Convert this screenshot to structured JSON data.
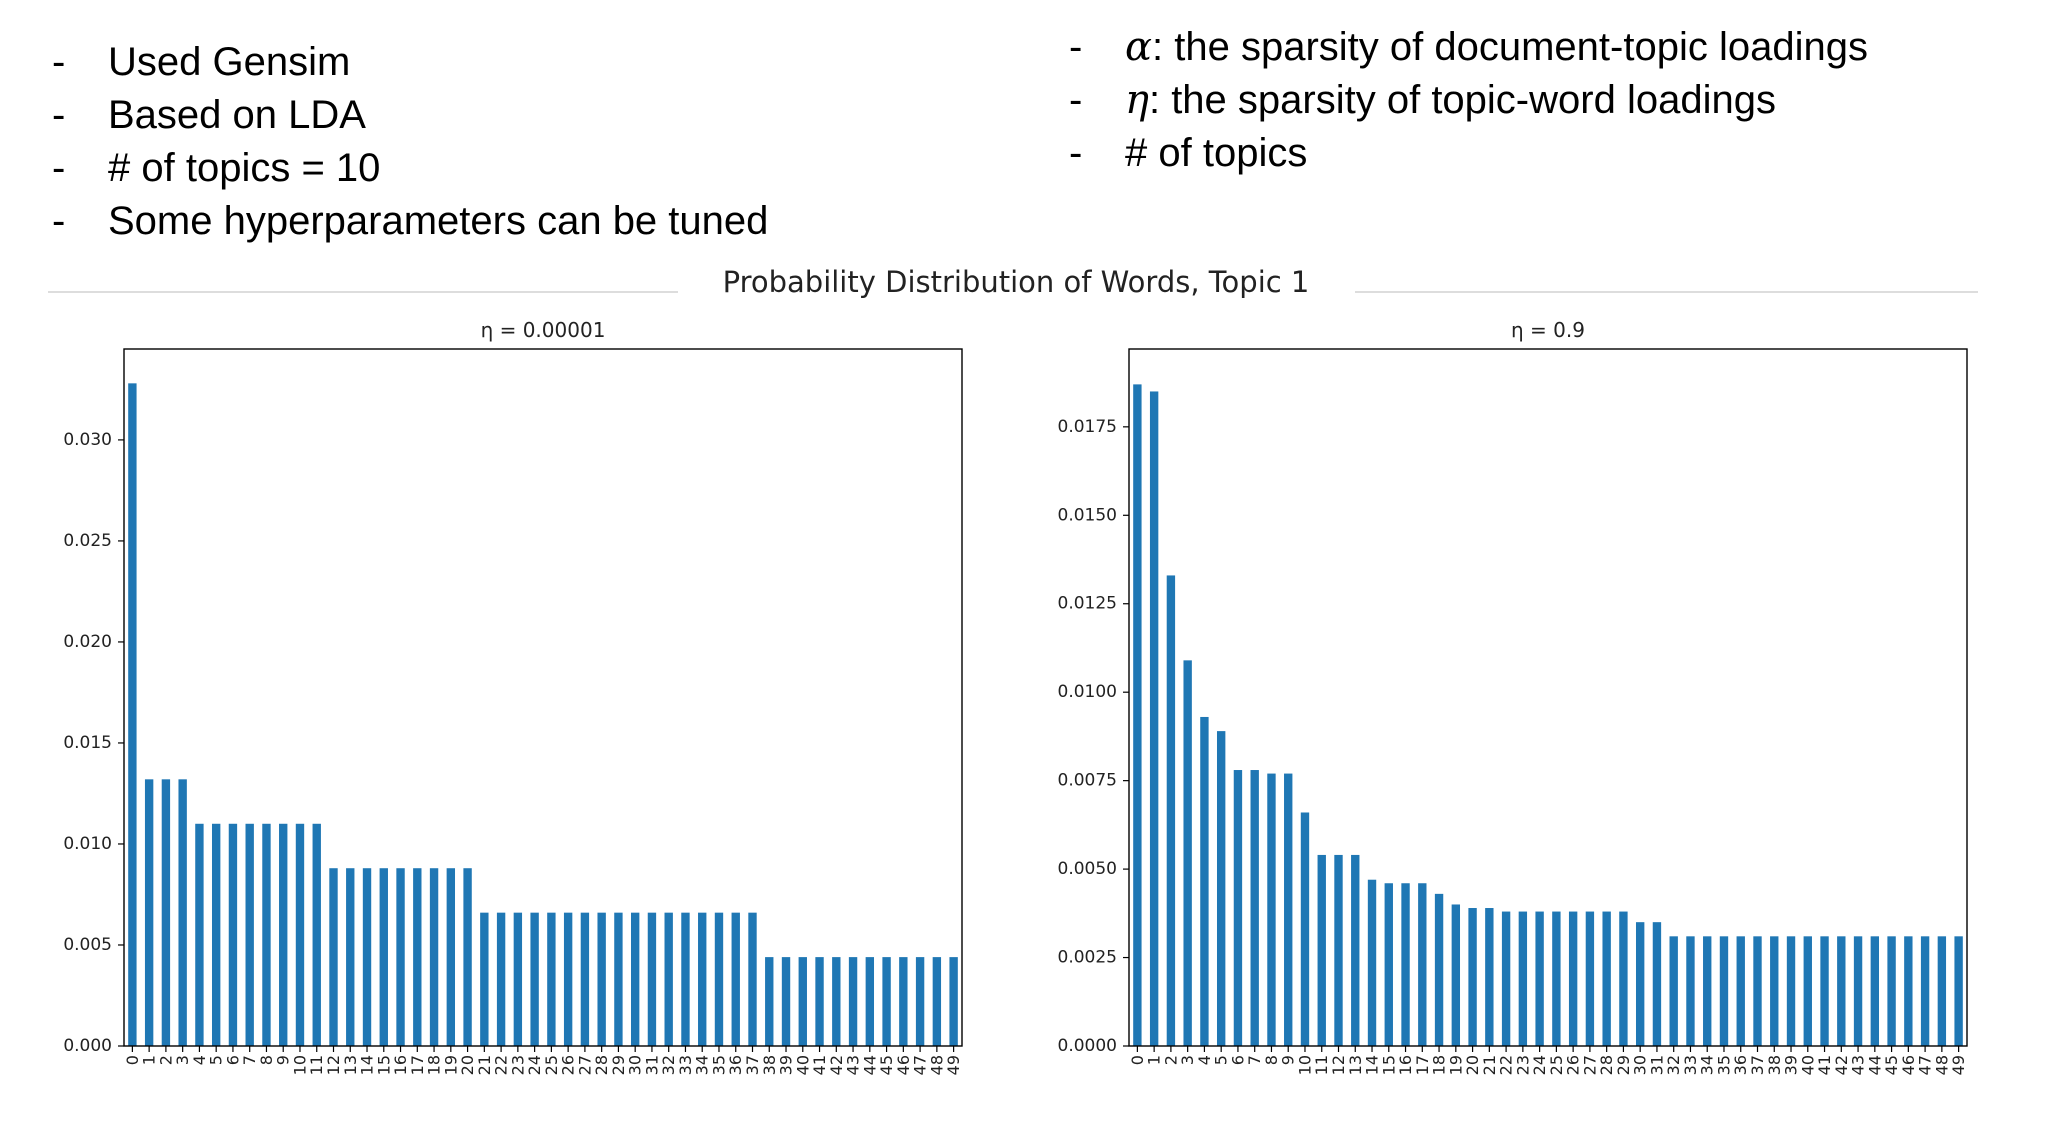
{
  "bullets_left": [
    {
      "dash": "-",
      "text": "Used Gensim"
    },
    {
      "dash": "-",
      "text": "Based on LDA"
    },
    {
      "dash": "-",
      "text": "# of topics = 10"
    },
    {
      "dash": "-",
      "text": "Some hyperparameters can be tuned"
    }
  ],
  "bullets_right": [
    {
      "dash": "-",
      "symbol": "α",
      "text": ": the sparsity of document-topic loadings"
    },
    {
      "dash": "-",
      "symbol": "η",
      "text": ":  the sparsity of topic-word loadings"
    },
    {
      "dash": "-",
      "symbol": "",
      "text": "# of topics"
    }
  ],
  "figure_title": "Probability Distribution of Words, Topic 1",
  "bar_color": "#1f77b4",
  "chart_data": [
    {
      "type": "bar",
      "title": "η  = 0.00001",
      "categories": [
        "0",
        "1",
        "2",
        "3",
        "4",
        "5",
        "6",
        "7",
        "8",
        "9",
        "10",
        "11",
        "12",
        "13",
        "14",
        "15",
        "16",
        "17",
        "18",
        "19",
        "20",
        "21",
        "22",
        "23",
        "24",
        "25",
        "26",
        "27",
        "28",
        "29",
        "30",
        "31",
        "32",
        "33",
        "34",
        "35",
        "36",
        "37",
        "38",
        "39",
        "40",
        "41",
        "42",
        "43",
        "44",
        "45",
        "46",
        "47",
        "48",
        "49"
      ],
      "values": [
        0.0328,
        0.0132,
        0.0132,
        0.0132,
        0.011,
        0.011,
        0.011,
        0.011,
        0.011,
        0.011,
        0.011,
        0.011,
        0.0088,
        0.0088,
        0.0088,
        0.0088,
        0.0088,
        0.0088,
        0.0088,
        0.0088,
        0.0088,
        0.0066,
        0.0066,
        0.0066,
        0.0066,
        0.0066,
        0.0066,
        0.0066,
        0.0066,
        0.0066,
        0.0066,
        0.0066,
        0.0066,
        0.0066,
        0.0066,
        0.0066,
        0.0066,
        0.0066,
        0.0044,
        0.0044,
        0.0044,
        0.0044,
        0.0044,
        0.0044,
        0.0044,
        0.0044,
        0.0044,
        0.0044,
        0.0044,
        0.0044
      ],
      "ylim": [
        0,
        0.0345
      ],
      "yticks": [
        0,
        0.005,
        0.01,
        0.015,
        0.02,
        0.025,
        0.03
      ],
      "ytick_labels": [
        "0.000",
        "0.005",
        "0.010",
        "0.015",
        "0.020",
        "0.025",
        "0.030"
      ],
      "xlabel": "",
      "ylabel": "",
      "grid": false
    },
    {
      "type": "bar",
      "title": "η  = 0.9",
      "categories": [
        "0",
        "1",
        "2",
        "3",
        "4",
        "5",
        "6",
        "7",
        "8",
        "9",
        "10",
        "11",
        "12",
        "13",
        "14",
        "15",
        "16",
        "17",
        "18",
        "19",
        "20",
        "21",
        "22",
        "23",
        "24",
        "25",
        "26",
        "27",
        "28",
        "29",
        "30",
        "31",
        "32",
        "33",
        "34",
        "35",
        "36",
        "37",
        "38",
        "39",
        "40",
        "41",
        "42",
        "43",
        "44",
        "45",
        "46",
        "47",
        "48",
        "49"
      ],
      "values": [
        0.0187,
        0.0185,
        0.0133,
        0.0109,
        0.0093,
        0.0089,
        0.0078,
        0.0078,
        0.0077,
        0.0077,
        0.0066,
        0.0054,
        0.0054,
        0.0054,
        0.0047,
        0.0046,
        0.0046,
        0.0046,
        0.0043,
        0.004,
        0.0039,
        0.0039,
        0.0038,
        0.0038,
        0.0038,
        0.0038,
        0.0038,
        0.0038,
        0.0038,
        0.0038,
        0.0035,
        0.0035,
        0.0031,
        0.0031,
        0.0031,
        0.0031,
        0.0031,
        0.0031,
        0.0031,
        0.0031,
        0.0031,
        0.0031,
        0.0031,
        0.0031,
        0.0031,
        0.0031,
        0.0031,
        0.0031,
        0.0031,
        0.0031
      ],
      "ylim": [
        0,
        0.0197
      ],
      "yticks": [
        0,
        0.0025,
        0.005,
        0.0075,
        0.01,
        0.0125,
        0.015,
        0.0175
      ],
      "ytick_labels": [
        "0.0000",
        "0.0025",
        "0.0050",
        "0.0075",
        "0.0100",
        "0.0125",
        "0.0150",
        "0.0175"
      ],
      "xlabel": "",
      "ylabel": "",
      "grid": false
    }
  ]
}
